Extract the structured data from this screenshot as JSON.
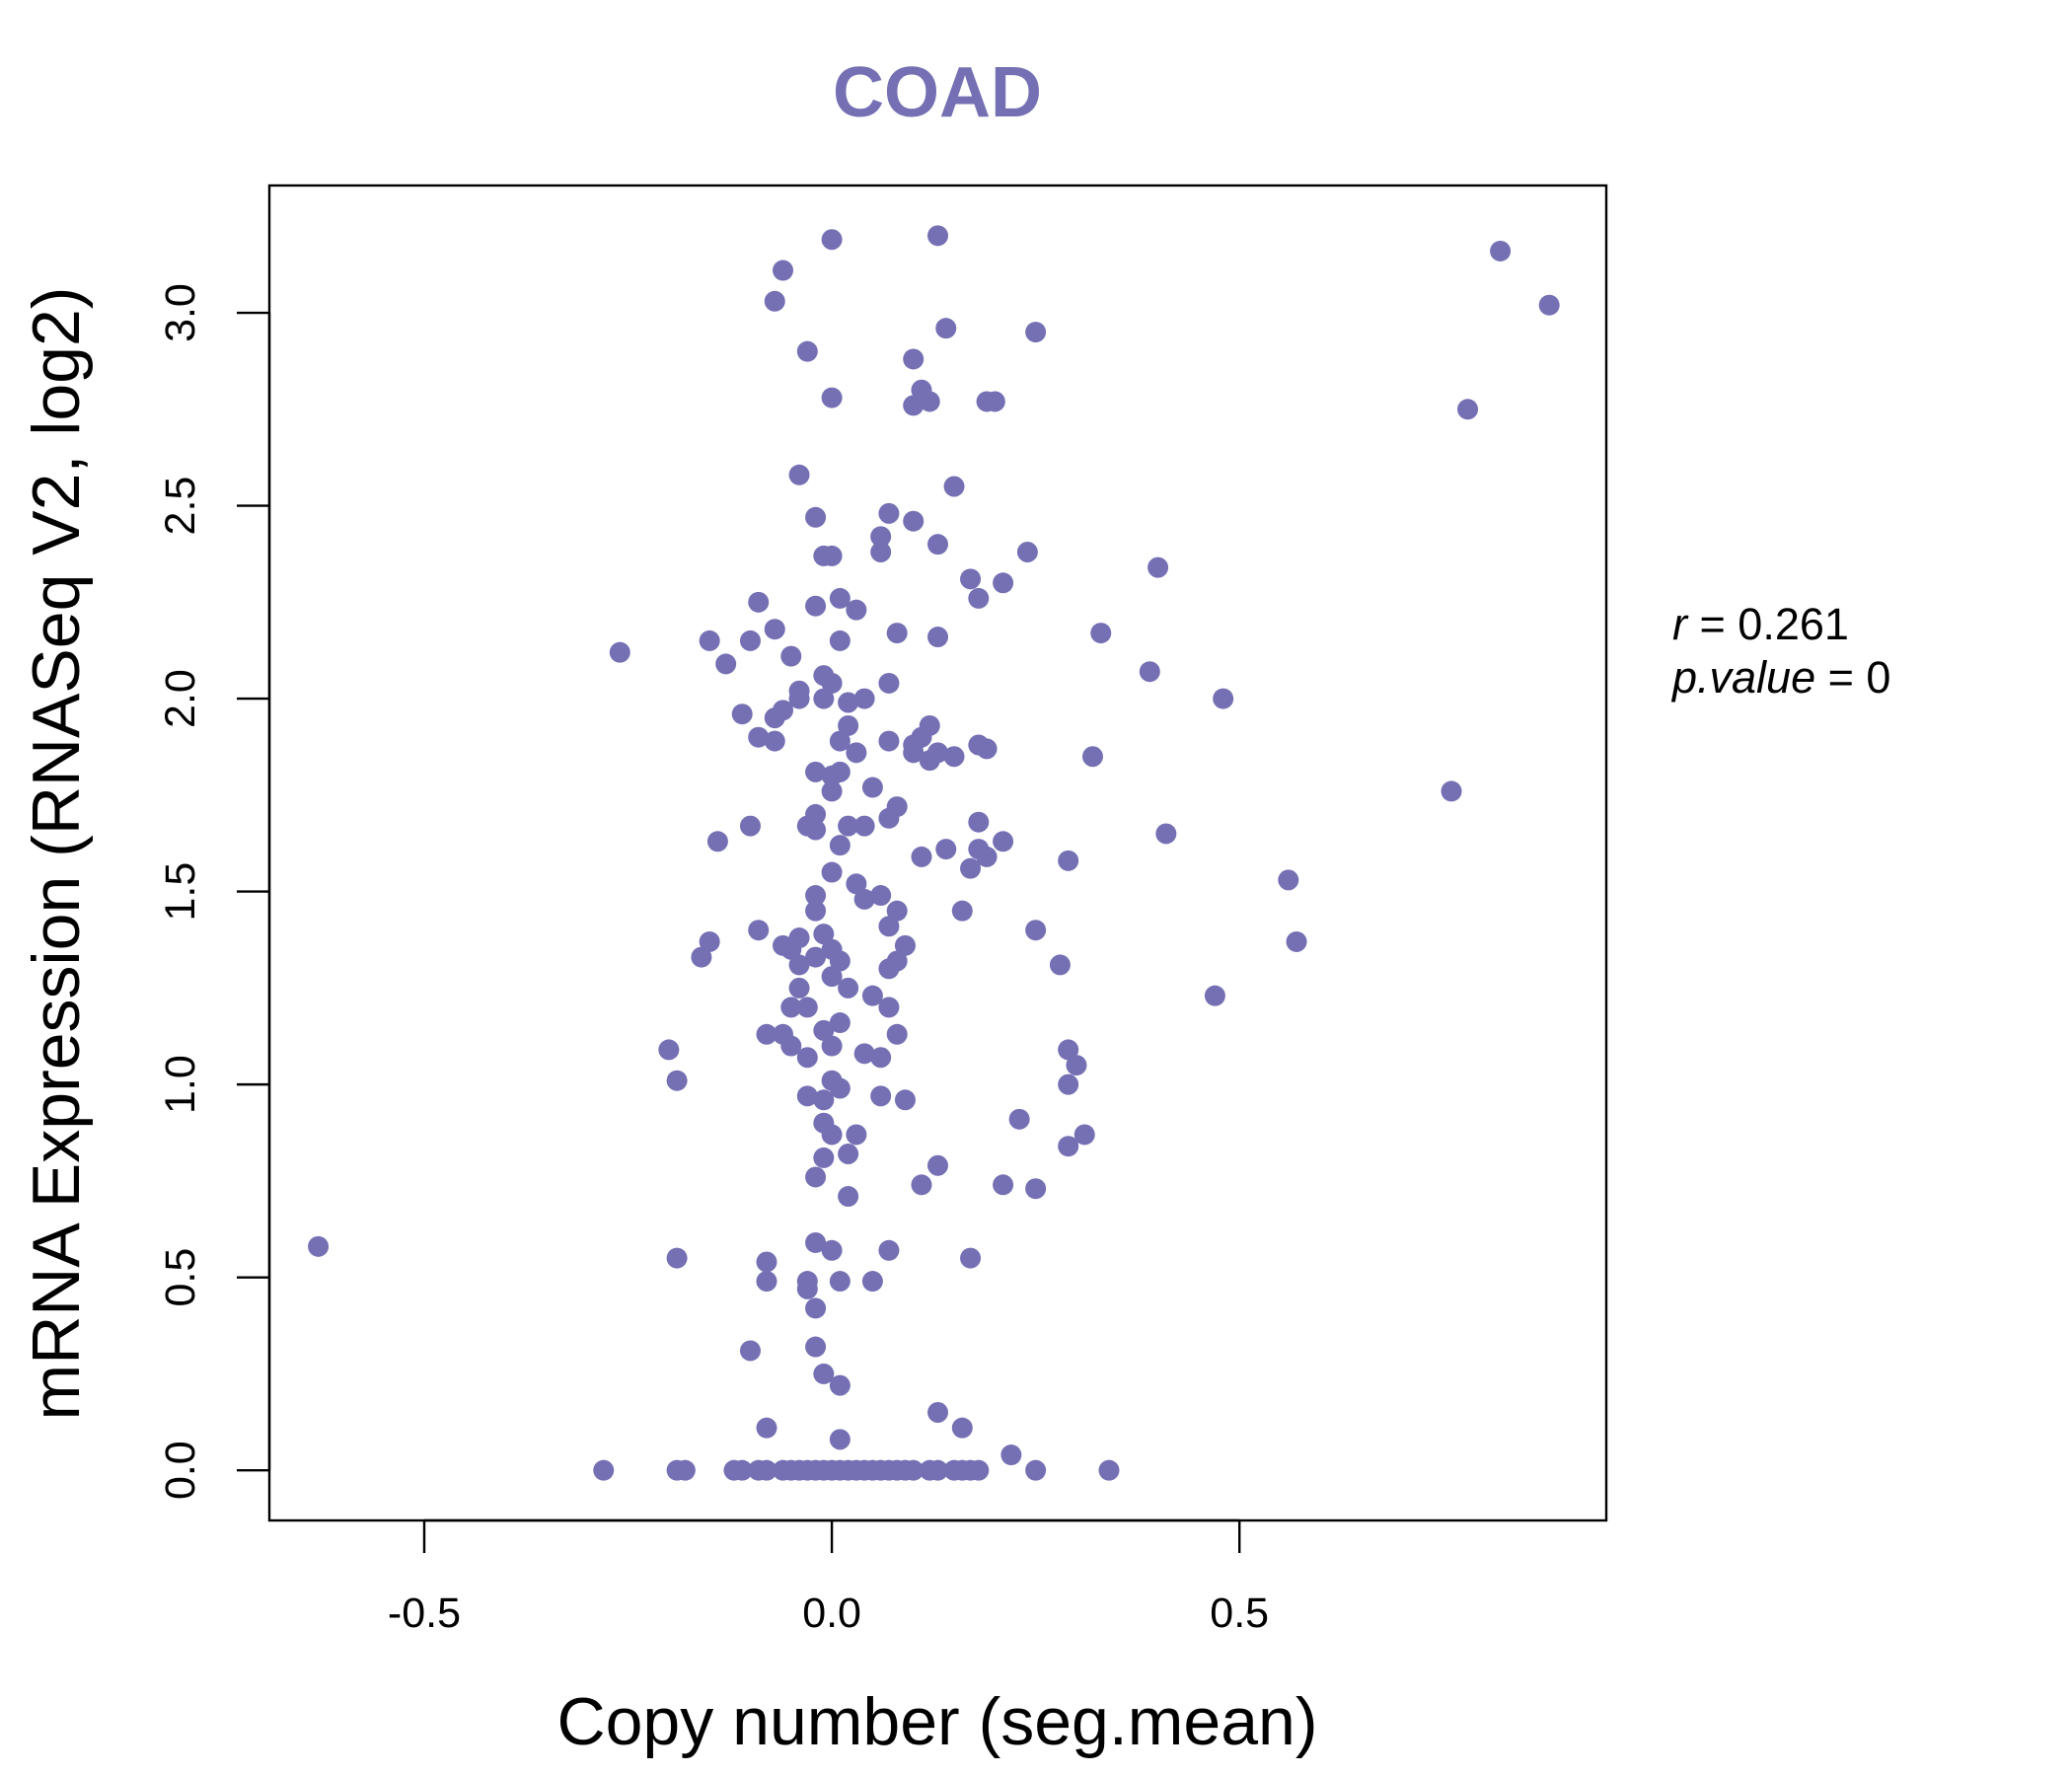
{
  "accent_color": "#7570b3",
  "chart_data": {
    "type": "scatter",
    "title": "COAD",
    "xlabel": "Copy number (seg.mean)",
    "ylabel": "mRNA Expression (RNASeq V2, log2)",
    "xlim": [
      -0.69,
      0.95
    ],
    "ylim": [
      -0.13,
      3.33
    ],
    "x_ticks": [
      -0.5,
      0.0,
      0.5
    ],
    "x_tick_labels": [
      "-0.5",
      "0.0",
      "0.5"
    ],
    "y_ticks": [
      0.0,
      0.5,
      1.0,
      1.5,
      2.0,
      2.5,
      3.0
    ],
    "y_tick_labels": [
      "0.0",
      "0.5",
      "1.0",
      "1.5",
      "2.0",
      "2.5",
      "3.0"
    ],
    "stats": {
      "r_label": "r",
      "r_value": "0.261",
      "p_label": "p.value",
      "p_value": "0"
    },
    "points": [
      [
        -0.63,
        0.58
      ],
      [
        -0.28,
        0.0
      ],
      [
        -0.26,
        2.12
      ],
      [
        -0.2,
        1.09
      ],
      [
        -0.19,
        1.01
      ],
      [
        -0.19,
        0.55
      ],
      [
        -0.19,
        0.0
      ],
      [
        -0.18,
        0.0
      ],
      [
        -0.16,
        1.33
      ],
      [
        -0.15,
        1.37
      ],
      [
        -0.15,
        2.15
      ],
      [
        -0.14,
        1.63
      ],
      [
        -0.13,
        2.09
      ],
      [
        -0.12,
        0.0
      ],
      [
        -0.11,
        1.96
      ],
      [
        -0.11,
        0.0
      ],
      [
        -0.1,
        1.67
      ],
      [
        -0.1,
        0.31
      ],
      [
        -0.1,
        2.15
      ],
      [
        -0.09,
        1.9
      ],
      [
        -0.09,
        2.25
      ],
      [
        -0.09,
        1.4
      ],
      [
        -0.09,
        0.0
      ],
      [
        -0.08,
        1.13
      ],
      [
        -0.08,
        0.49
      ],
      [
        -0.08,
        0.54
      ],
      [
        -0.08,
        0.11
      ],
      [
        -0.08,
        0.0
      ],
      [
        -0.07,
        1.89
      ],
      [
        -0.07,
        2.18
      ],
      [
        -0.07,
        3.03
      ],
      [
        -0.07,
        1.95
      ],
      [
        -0.06,
        1.13
      ],
      [
        -0.06,
        0.0
      ],
      [
        -0.06,
        1.97
      ],
      [
        -0.06,
        1.36
      ],
      [
        -0.06,
        3.11
      ],
      [
        -0.05,
        1.35
      ],
      [
        -0.05,
        1.2
      ],
      [
        -0.05,
        1.1
      ],
      [
        -0.05,
        2.11
      ],
      [
        -0.05,
        0.0
      ],
      [
        -0.04,
        1.31
      ],
      [
        -0.04,
        1.25
      ],
      [
        -0.04,
        2.58
      ],
      [
        -0.04,
        2.02
      ],
      [
        -0.04,
        1.38
      ],
      [
        -0.04,
        0.0
      ],
      [
        -0.04,
        2.0
      ],
      [
        -0.03,
        1.67
      ],
      [
        -0.03,
        1.2
      ],
      [
        -0.03,
        1.07
      ],
      [
        -0.03,
        0.97
      ],
      [
        -0.03,
        0.49
      ],
      [
        -0.03,
        2.9
      ],
      [
        -0.03,
        0.47
      ],
      [
        -0.03,
        0.0
      ],
      [
        -0.02,
        1.45
      ],
      [
        -0.02,
        1.49
      ],
      [
        -0.02,
        1.7
      ],
      [
        -0.02,
        1.66
      ],
      [
        -0.02,
        2.47
      ],
      [
        -0.02,
        2.24
      ],
      [
        -0.02,
        1.81
      ],
      [
        -0.02,
        1.33
      ],
      [
        -0.02,
        0.42
      ],
      [
        -0.02,
        0.59
      ],
      [
        -0.02,
        0.76
      ],
      [
        -0.02,
        0.32
      ],
      [
        -0.02,
        0.0
      ],
      [
        -0.01,
        2.06
      ],
      [
        -0.01,
        2.0
      ],
      [
        -0.01,
        1.39
      ],
      [
        -0.01,
        1.14
      ],
      [
        -0.01,
        0.96
      ],
      [
        -0.01,
        0.9
      ],
      [
        -0.01,
        0.81
      ],
      [
        -0.01,
        0.0
      ],
      [
        -0.01,
        2.37
      ],
      [
        -0.01,
        0.25
      ],
      [
        0.0,
        2.04
      ],
      [
        0.0,
        1.8
      ],
      [
        0.0,
        1.76
      ],
      [
        0.0,
        1.55
      ],
      [
        0.0,
        1.35
      ],
      [
        0.0,
        1.28
      ],
      [
        0.0,
        1.1
      ],
      [
        0.0,
        1.01
      ],
      [
        0.0,
        0.87
      ],
      [
        0.0,
        0.57
      ],
      [
        0.0,
        0.0
      ],
      [
        0.0,
        2.37
      ],
      [
        0.0,
        3.19
      ],
      [
        0.0,
        2.78
      ],
      [
        0.01,
        1.89
      ],
      [
        0.01,
        1.81
      ],
      [
        0.01,
        1.62
      ],
      [
        0.01,
        1.32
      ],
      [
        0.01,
        1.16
      ],
      [
        0.01,
        0.99
      ],
      [
        0.01,
        0.49
      ],
      [
        0.01,
        0.22
      ],
      [
        0.01,
        0.08
      ],
      [
        0.01,
        0.0
      ],
      [
        0.01,
        2.26
      ],
      [
        0.01,
        2.15
      ],
      [
        0.02,
        1.93
      ],
      [
        0.02,
        1.99
      ],
      [
        0.02,
        1.67
      ],
      [
        0.02,
        1.25
      ],
      [
        0.02,
        0.82
      ],
      [
        0.02,
        0.71
      ],
      [
        0.02,
        0.0
      ],
      [
        0.03,
        2.23
      ],
      [
        0.03,
        1.86
      ],
      [
        0.03,
        1.52
      ],
      [
        0.03,
        0.87
      ],
      [
        0.03,
        0.0
      ],
      [
        0.04,
        1.67
      ],
      [
        0.04,
        1.48
      ],
      [
        0.04,
        1.08
      ],
      [
        0.04,
        0.0
      ],
      [
        0.04,
        2.0
      ],
      [
        0.05,
        1.77
      ],
      [
        0.05,
        1.23
      ],
      [
        0.05,
        0.49
      ],
      [
        0.05,
        0.0
      ],
      [
        0.06,
        1.49
      ],
      [
        0.06,
        1.07
      ],
      [
        0.06,
        0.97
      ],
      [
        0.06,
        2.38
      ],
      [
        0.06,
        2.42
      ],
      [
        0.06,
        0.0
      ],
      [
        0.07,
        1.89
      ],
      [
        0.07,
        1.69
      ],
      [
        0.07,
        1.3
      ],
      [
        0.07,
        1.2
      ],
      [
        0.07,
        0.57
      ],
      [
        0.07,
        2.04
      ],
      [
        0.07,
        1.41
      ],
      [
        0.07,
        0.0
      ],
      [
        0.07,
        2.48
      ],
      [
        0.08,
        1.72
      ],
      [
        0.08,
        1.32
      ],
      [
        0.08,
        1.13
      ],
      [
        0.08,
        1.45
      ],
      [
        0.08,
        0.0
      ],
      [
        0.08,
        2.17
      ],
      [
        0.09,
        1.36
      ],
      [
        0.09,
        0.96
      ],
      [
        0.09,
        0.0
      ],
      [
        0.1,
        1.88
      ],
      [
        0.1,
        1.86
      ],
      [
        0.1,
        0.0
      ],
      [
        0.1,
        2.46
      ],
      [
        0.1,
        2.76
      ],
      [
        0.1,
        2.88
      ],
      [
        0.11,
        1.9
      ],
      [
        0.11,
        1.59
      ],
      [
        0.11,
        0.74
      ],
      [
        0.11,
        2.8
      ],
      [
        0.12,
        1.93
      ],
      [
        0.12,
        2.77
      ],
      [
        0.12,
        0.0
      ],
      [
        0.12,
        1.84
      ],
      [
        0.13,
        1.86
      ],
      [
        0.13,
        2.16
      ],
      [
        0.13,
        0.79
      ],
      [
        0.13,
        0.15
      ],
      [
        0.13,
        0.0
      ],
      [
        0.13,
        2.4
      ],
      [
        0.13,
        3.2
      ],
      [
        0.14,
        1.61
      ],
      [
        0.14,
        2.96
      ],
      [
        0.15,
        1.85
      ],
      [
        0.15,
        0.0
      ],
      [
        0.15,
        2.55
      ],
      [
        0.16,
        1.45
      ],
      [
        0.16,
        0.11
      ],
      [
        0.16,
        0.0
      ],
      [
        0.17,
        1.56
      ],
      [
        0.17,
        2.31
      ],
      [
        0.17,
        0.55
      ],
      [
        0.17,
        0.0
      ],
      [
        0.18,
        1.88
      ],
      [
        0.18,
        1.68
      ],
      [
        0.18,
        1.61
      ],
      [
        0.18,
        2.26
      ],
      [
        0.18,
        0.0
      ],
      [
        0.19,
        1.59
      ],
      [
        0.19,
        1.87
      ],
      [
        0.19,
        2.77
      ],
      [
        0.2,
        2.77
      ],
      [
        0.21,
        0.74
      ],
      [
        0.21,
        1.63
      ],
      [
        0.21,
        2.3
      ],
      [
        0.22,
        0.04
      ],
      [
        0.23,
        0.91
      ],
      [
        0.24,
        2.38
      ],
      [
        0.25,
        1.4
      ],
      [
        0.25,
        0.73
      ],
      [
        0.25,
        0.0
      ],
      [
        0.25,
        2.95
      ],
      [
        0.28,
        1.31
      ],
      [
        0.29,
        1.09
      ],
      [
        0.29,
        1.58
      ],
      [
        0.29,
        1.0
      ],
      [
        0.29,
        0.84
      ],
      [
        0.3,
        1.05
      ],
      [
        0.31,
        0.87
      ],
      [
        0.32,
        1.85
      ],
      [
        0.33,
        2.17
      ],
      [
        0.34,
        0.0
      ],
      [
        0.39,
        2.07
      ],
      [
        0.4,
        2.34
      ],
      [
        0.41,
        1.65
      ],
      [
        0.47,
        1.23
      ],
      [
        0.48,
        2.0
      ],
      [
        0.56,
        1.53
      ],
      [
        0.57,
        1.37
      ],
      [
        0.76,
        1.76
      ],
      [
        0.78,
        2.75
      ],
      [
        0.82,
        3.16
      ],
      [
        0.88,
        3.02
      ]
    ]
  }
}
